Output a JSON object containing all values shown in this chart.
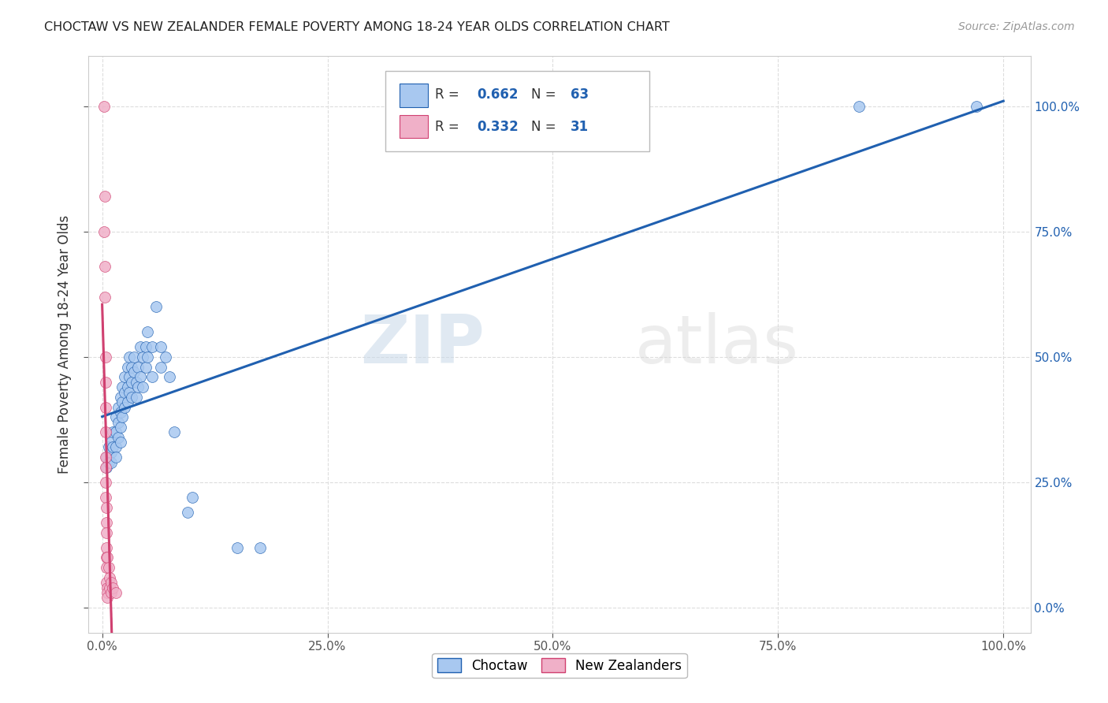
{
  "title": "CHOCTAW VS NEW ZEALANDER FEMALE POVERTY AMONG 18-24 YEAR OLDS CORRELATION CHART",
  "source": "Source: ZipAtlas.com",
  "ylabel": "Female Poverty Among 18-24 Year Olds",
  "blue_R": 0.662,
  "blue_N": 63,
  "pink_R": 0.332,
  "pink_N": 31,
  "blue_color": "#a8c8f0",
  "pink_color": "#f0b0c8",
  "blue_line_color": "#2060b0",
  "pink_line_color": "#d04070",
  "blue_scatter": [
    [
      0.005,
      0.3
    ],
    [
      0.005,
      0.28
    ],
    [
      0.007,
      0.32
    ],
    [
      0.007,
      0.29
    ],
    [
      0.01,
      0.33
    ],
    [
      0.01,
      0.31
    ],
    [
      0.01,
      0.29
    ],
    [
      0.012,
      0.35
    ],
    [
      0.012,
      0.32
    ],
    [
      0.015,
      0.38
    ],
    [
      0.015,
      0.35
    ],
    [
      0.015,
      0.32
    ],
    [
      0.015,
      0.3
    ],
    [
      0.018,
      0.4
    ],
    [
      0.018,
      0.37
    ],
    [
      0.018,
      0.34
    ],
    [
      0.02,
      0.42
    ],
    [
      0.02,
      0.39
    ],
    [
      0.02,
      0.36
    ],
    [
      0.02,
      0.33
    ],
    [
      0.022,
      0.44
    ],
    [
      0.022,
      0.41
    ],
    [
      0.022,
      0.38
    ],
    [
      0.025,
      0.46
    ],
    [
      0.025,
      0.43
    ],
    [
      0.025,
      0.4
    ],
    [
      0.028,
      0.48
    ],
    [
      0.028,
      0.44
    ],
    [
      0.028,
      0.41
    ],
    [
      0.03,
      0.5
    ],
    [
      0.03,
      0.46
    ],
    [
      0.03,
      0.43
    ],
    [
      0.033,
      0.48
    ],
    [
      0.033,
      0.45
    ],
    [
      0.033,
      0.42
    ],
    [
      0.035,
      0.5
    ],
    [
      0.035,
      0.47
    ],
    [
      0.038,
      0.45
    ],
    [
      0.038,
      0.42
    ],
    [
      0.04,
      0.48
    ],
    [
      0.04,
      0.44
    ],
    [
      0.042,
      0.52
    ],
    [
      0.042,
      0.46
    ],
    [
      0.045,
      0.5
    ],
    [
      0.045,
      0.44
    ],
    [
      0.048,
      0.52
    ],
    [
      0.048,
      0.48
    ],
    [
      0.05,
      0.55
    ],
    [
      0.05,
      0.5
    ],
    [
      0.055,
      0.52
    ],
    [
      0.055,
      0.46
    ],
    [
      0.06,
      0.6
    ],
    [
      0.065,
      0.52
    ],
    [
      0.065,
      0.48
    ],
    [
      0.07,
      0.5
    ],
    [
      0.075,
      0.46
    ],
    [
      0.08,
      0.35
    ],
    [
      0.095,
      0.19
    ],
    [
      0.1,
      0.22
    ],
    [
      0.15,
      0.12
    ],
    [
      0.175,
      0.12
    ],
    [
      0.84,
      1.0
    ],
    [
      0.97,
      1.0
    ]
  ],
  "pink_scatter": [
    [
      0.002,
      1.0
    ],
    [
      0.003,
      0.82
    ],
    [
      0.003,
      0.68
    ],
    [
      0.003,
      0.62
    ],
    [
      0.004,
      0.5
    ],
    [
      0.004,
      0.45
    ],
    [
      0.004,
      0.4
    ],
    [
      0.004,
      0.35
    ],
    [
      0.004,
      0.3
    ],
    [
      0.004,
      0.28
    ],
    [
      0.004,
      0.25
    ],
    [
      0.004,
      0.22
    ],
    [
      0.005,
      0.2
    ],
    [
      0.005,
      0.17
    ],
    [
      0.005,
      0.15
    ],
    [
      0.005,
      0.12
    ],
    [
      0.005,
      0.1
    ],
    [
      0.005,
      0.08
    ],
    [
      0.005,
      0.05
    ],
    [
      0.006,
      0.04
    ],
    [
      0.006,
      0.03
    ],
    [
      0.006,
      0.02
    ],
    [
      0.006,
      0.1
    ],
    [
      0.007,
      0.08
    ],
    [
      0.008,
      0.06
    ],
    [
      0.008,
      0.04
    ],
    [
      0.01,
      0.05
    ],
    [
      0.01,
      0.03
    ],
    [
      0.012,
      0.04
    ],
    [
      0.015,
      0.03
    ],
    [
      0.002,
      0.75
    ]
  ],
  "xlim": [
    -0.015,
    1.03
  ],
  "ylim": [
    -0.05,
    1.1
  ],
  "xticks": [
    0.0,
    0.25,
    0.5,
    0.75,
    1.0
  ],
  "yticks": [
    0.0,
    0.25,
    0.5,
    0.75,
    1.0
  ],
  "xtick_labels": [
    "0.0%",
    "25.0%",
    "50.0%",
    "75.0%",
    "100.0%"
  ],
  "right_ytick_labels": [
    "0.0%",
    "25.0%",
    "50.0%",
    "75.0%",
    "100.0%"
  ],
  "background_color": "#ffffff",
  "grid_color": "#dddddd",
  "watermark_zip": "ZIP",
  "watermark_atlas": "atlas",
  "legend_label_blue": "Choctaw",
  "legend_label_pink": "New Zealanders"
}
